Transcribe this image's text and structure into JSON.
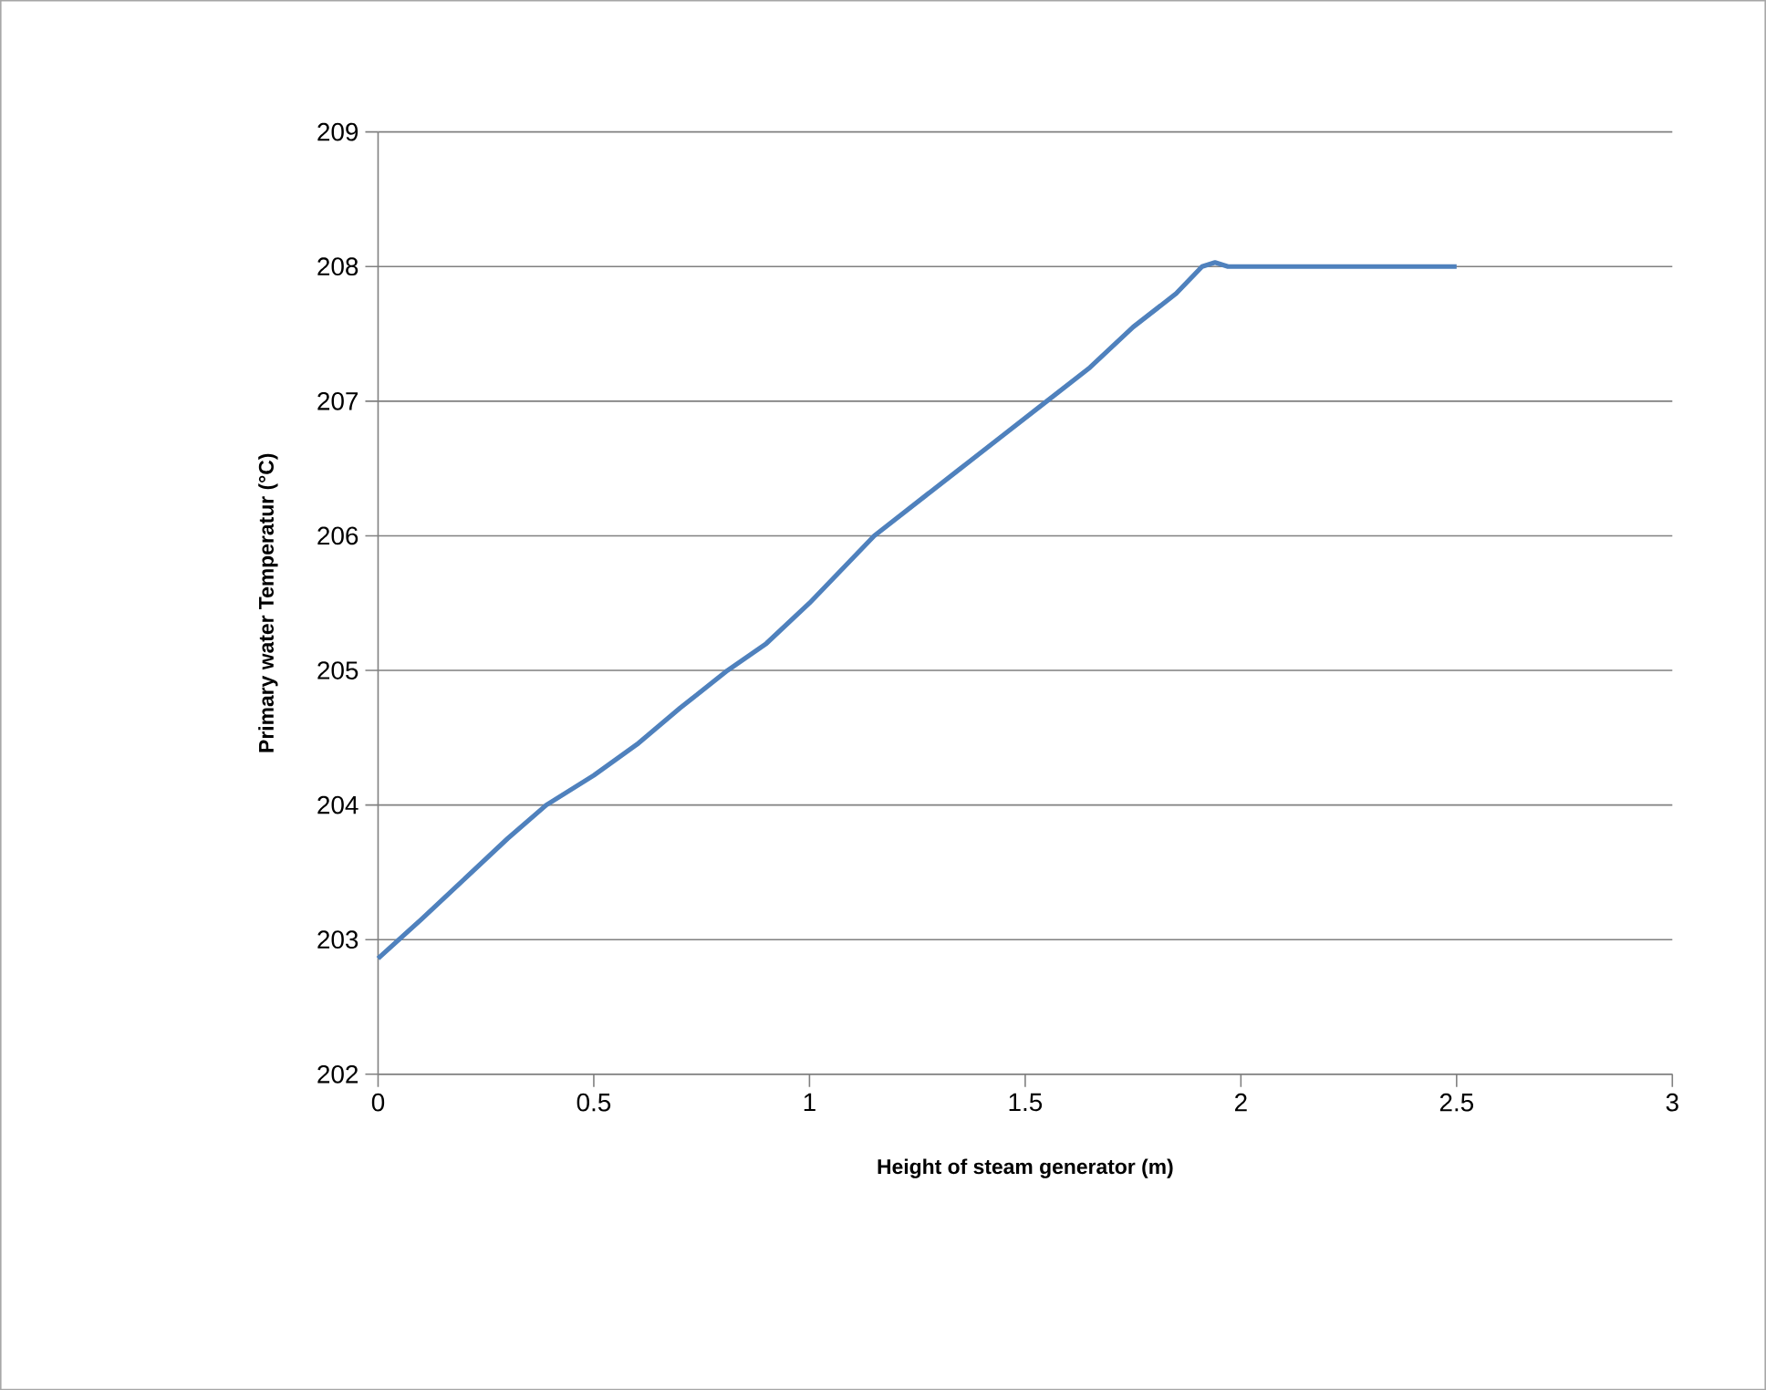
{
  "chart_data": {
    "type": "line",
    "xlabel": "Height of steam generator (m)",
    "ylabel": "Primary water Temperatur (°C)",
    "series": [
      {
        "color": "#4f81bd",
        "x": [
          0,
          0.1,
          0.2,
          0.3,
          0.39,
          0.5,
          0.6,
          0.7,
          0.81,
          0.9,
          1.0,
          1.15,
          1.25,
          1.35,
          1.45,
          1.55,
          1.65,
          1.75,
          1.85,
          1.91,
          1.94,
          1.97,
          2.0,
          2.5
        ],
        "values": [
          202.86,
          203.15,
          203.45,
          203.75,
          204.0,
          204.22,
          204.45,
          204.72,
          205.0,
          205.2,
          205.5,
          206.0,
          206.25,
          206.5,
          206.75,
          207.0,
          207.25,
          207.55,
          207.8,
          208.0,
          208.03,
          208.0,
          208.0,
          208.0
        ]
      }
    ],
    "xlim": [
      0,
      3
    ],
    "ylim": [
      202,
      209
    ],
    "xticks": [
      0,
      0.5,
      1,
      1.5,
      2,
      2.5,
      3
    ],
    "yticks": [
      202,
      203,
      204,
      205,
      206,
      207,
      208,
      209
    ],
    "grid": "y",
    "marker": "none",
    "line_style": "solid"
  }
}
